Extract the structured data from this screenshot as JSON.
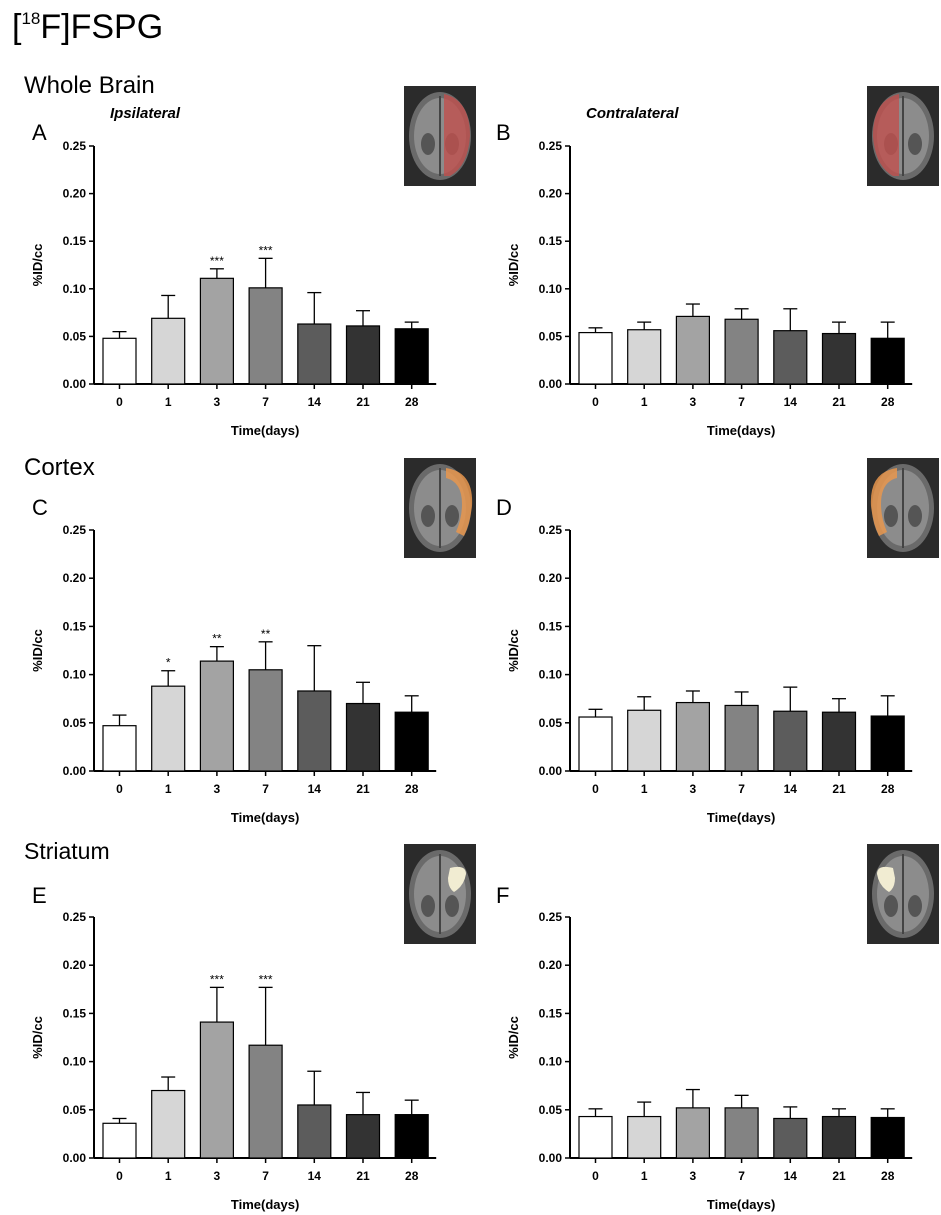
{
  "figure": {
    "title_prefix": "[",
    "title_sup": "18",
    "title_rest": "F]FSPG",
    "regions": [
      "Whole Brain",
      "Cortex",
      "Striatum"
    ],
    "ipsilateral_label": "Ipsilateral",
    "contralateral_label": "Contralateral"
  },
  "colors": {
    "bars": [
      "#ffffff",
      "#d6d6d6",
      "#a3a3a3",
      "#838383",
      "#5c5c5c",
      "#333333",
      "#000000"
    ],
    "overlay_whole_brain": "#c0504d",
    "overlay_cortex": "#e8964e",
    "overlay_striatum": "#f1ecd2"
  },
  "chart_data": [
    {
      "type": "bar",
      "panel": "A",
      "categories": [
        "0",
        "1",
        "3",
        "7",
        "14",
        "21",
        "28"
      ],
      "values": [
        0.048,
        0.069,
        0.111,
        0.101,
        0.063,
        0.061,
        0.058
      ],
      "errors": [
        0.007,
        0.024,
        0.01,
        0.031,
        0.033,
        0.016,
        0.007
      ],
      "annotations": [
        "",
        "",
        "***",
        "***",
        "",
        "",
        ""
      ],
      "xlabel": "Time(days)",
      "ylabel": "%ID/cc",
      "yticks": [
        "0.00",
        "0.05",
        "0.10",
        "0.15",
        "0.20",
        "0.25"
      ],
      "ylim": [
        0,
        0.25
      ]
    },
    {
      "type": "bar",
      "panel": "B",
      "categories": [
        "0",
        "1",
        "3",
        "7",
        "14",
        "21",
        "28"
      ],
      "values": [
        0.054,
        0.057,
        0.071,
        0.068,
        0.056,
        0.053,
        0.048
      ],
      "errors": [
        0.005,
        0.008,
        0.013,
        0.011,
        0.023,
        0.012,
        0.017
      ],
      "annotations": [
        "",
        "",
        "",
        "",
        "",
        "",
        ""
      ],
      "xlabel": "Time(days)",
      "ylabel": "%ID/cc",
      "yticks": [
        "0.00",
        "0.05",
        "0.10",
        "0.15",
        "0.20",
        "0.25"
      ],
      "ylim": [
        0,
        0.25
      ]
    },
    {
      "type": "bar",
      "panel": "C",
      "categories": [
        "0",
        "1",
        "3",
        "7",
        "14",
        "21",
        "28"
      ],
      "values": [
        0.047,
        0.088,
        0.114,
        0.105,
        0.083,
        0.07,
        0.061
      ],
      "errors": [
        0.011,
        0.016,
        0.015,
        0.029,
        0.047,
        0.022,
        0.017
      ],
      "annotations": [
        "",
        "*",
        "**",
        "**",
        "",
        "",
        ""
      ],
      "xlabel": "Time(days)",
      "ylabel": "%ID/cc",
      "yticks": [
        "0.00",
        "0.05",
        "0.10",
        "0.15",
        "0.20",
        "0.25"
      ],
      "ylim": [
        0,
        0.25
      ]
    },
    {
      "type": "bar",
      "panel": "D",
      "categories": [
        "0",
        "1",
        "3",
        "7",
        "14",
        "21",
        "28"
      ],
      "values": [
        0.056,
        0.063,
        0.071,
        0.068,
        0.062,
        0.061,
        0.057
      ],
      "errors": [
        0.008,
        0.014,
        0.012,
        0.014,
        0.025,
        0.014,
        0.021
      ],
      "annotations": [
        "",
        "",
        "",
        "",
        "",
        "",
        ""
      ],
      "xlabel": "Time(days)",
      "ylabel": "%ID/cc",
      "yticks": [
        "0.00",
        "0.05",
        "0.10",
        "0.15",
        "0.20",
        "0.25"
      ],
      "ylim": [
        0,
        0.25
      ]
    },
    {
      "type": "bar",
      "panel": "E",
      "categories": [
        "0",
        "1",
        "3",
        "7",
        "14",
        "21",
        "28"
      ],
      "values": [
        0.036,
        0.07,
        0.141,
        0.117,
        0.055,
        0.045,
        0.045
      ],
      "errors": [
        0.005,
        0.014,
        0.036,
        0.06,
        0.035,
        0.023,
        0.015
      ],
      "annotations": [
        "",
        "",
        "***",
        "***",
        "",
        "",
        ""
      ],
      "xlabel": "Time(days)",
      "ylabel": "%ID/cc",
      "yticks": [
        "0.00",
        "0.05",
        "0.10",
        "0.15",
        "0.20",
        "0.25"
      ],
      "ylim": [
        0,
        0.25
      ]
    },
    {
      "type": "bar",
      "panel": "F",
      "categories": [
        "0",
        "1",
        "3",
        "7",
        "14",
        "21",
        "28"
      ],
      "values": [
        0.043,
        0.043,
        0.052,
        0.052,
        0.041,
        0.043,
        0.042
      ],
      "errors": [
        0.008,
        0.015,
        0.019,
        0.013,
        0.012,
        0.008,
        0.009
      ],
      "annotations": [
        "",
        "",
        "",
        "",
        "",
        "",
        ""
      ],
      "xlabel": "Time(days)",
      "ylabel": "%ID/cc",
      "yticks": [
        "0.00",
        "0.05",
        "0.10",
        "0.15",
        "0.20",
        "0.25"
      ],
      "ylim": [
        0,
        0.25
      ]
    }
  ]
}
